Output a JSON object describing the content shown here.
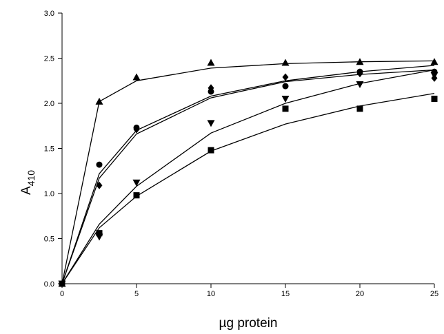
{
  "chart_data": {
    "type": "scatter",
    "xlabel": "µg protein",
    "ylabel": {
      "main": "A",
      "sub": "410"
    },
    "xlim": [
      0,
      25
    ],
    "ylim": [
      0,
      3.0
    ],
    "xticks": [
      0,
      5,
      10,
      15,
      20,
      25
    ],
    "yticks": [
      0.0,
      0.5,
      1.0,
      1.5,
      2.0,
      2.5,
      3.0
    ],
    "ytick_labels": [
      "0.0",
      "0.5",
      "1.0",
      "1.5",
      "2.0",
      "2.5",
      "3.0"
    ],
    "grid": false,
    "legend": "none",
    "series": [
      {
        "marker": "triangle-up",
        "x": [
          0,
          2.5,
          5,
          10,
          15,
          20,
          25
        ],
        "y": [
          0,
          2.02,
          2.29,
          2.45,
          2.45,
          2.46,
          2.46
        ],
        "fit": [
          0,
          2.02,
          2.25,
          2.39,
          2.44,
          2.46,
          2.47
        ]
      },
      {
        "marker": "circle",
        "x": [
          0,
          2.5,
          5,
          10,
          15,
          20,
          25
        ],
        "y": [
          0,
          1.32,
          1.73,
          2.13,
          2.19,
          2.35,
          2.35
        ],
        "fit": [
          0,
          1.22,
          1.7,
          2.08,
          2.25,
          2.35,
          2.42
        ]
      },
      {
        "marker": "diamond",
        "x": [
          0,
          2.5,
          5,
          10,
          15,
          20,
          25
        ],
        "y": [
          0,
          1.09,
          1.71,
          2.17,
          2.29,
          2.33,
          2.28
        ],
        "fit": [
          0,
          1.17,
          1.66,
          2.06,
          2.24,
          2.32,
          2.37
        ]
      },
      {
        "marker": "triangle-down",
        "x": [
          0,
          2.5,
          5,
          10,
          15,
          20,
          25
        ],
        "y": [
          0,
          0.52,
          1.12,
          1.78,
          2.05,
          2.21,
          2.31
        ],
        "fit": [
          0,
          0.66,
          1.08,
          1.67,
          2.0,
          2.22,
          2.37
        ]
      },
      {
        "marker": "square",
        "x": [
          0,
          2.5,
          5,
          10,
          15,
          20,
          25
        ],
        "y": [
          0,
          0.56,
          0.98,
          1.48,
          1.94,
          1.94,
          2.05
        ],
        "fit": [
          0,
          0.62,
          0.97,
          1.47,
          1.77,
          1.97,
          2.11
        ]
      }
    ]
  }
}
